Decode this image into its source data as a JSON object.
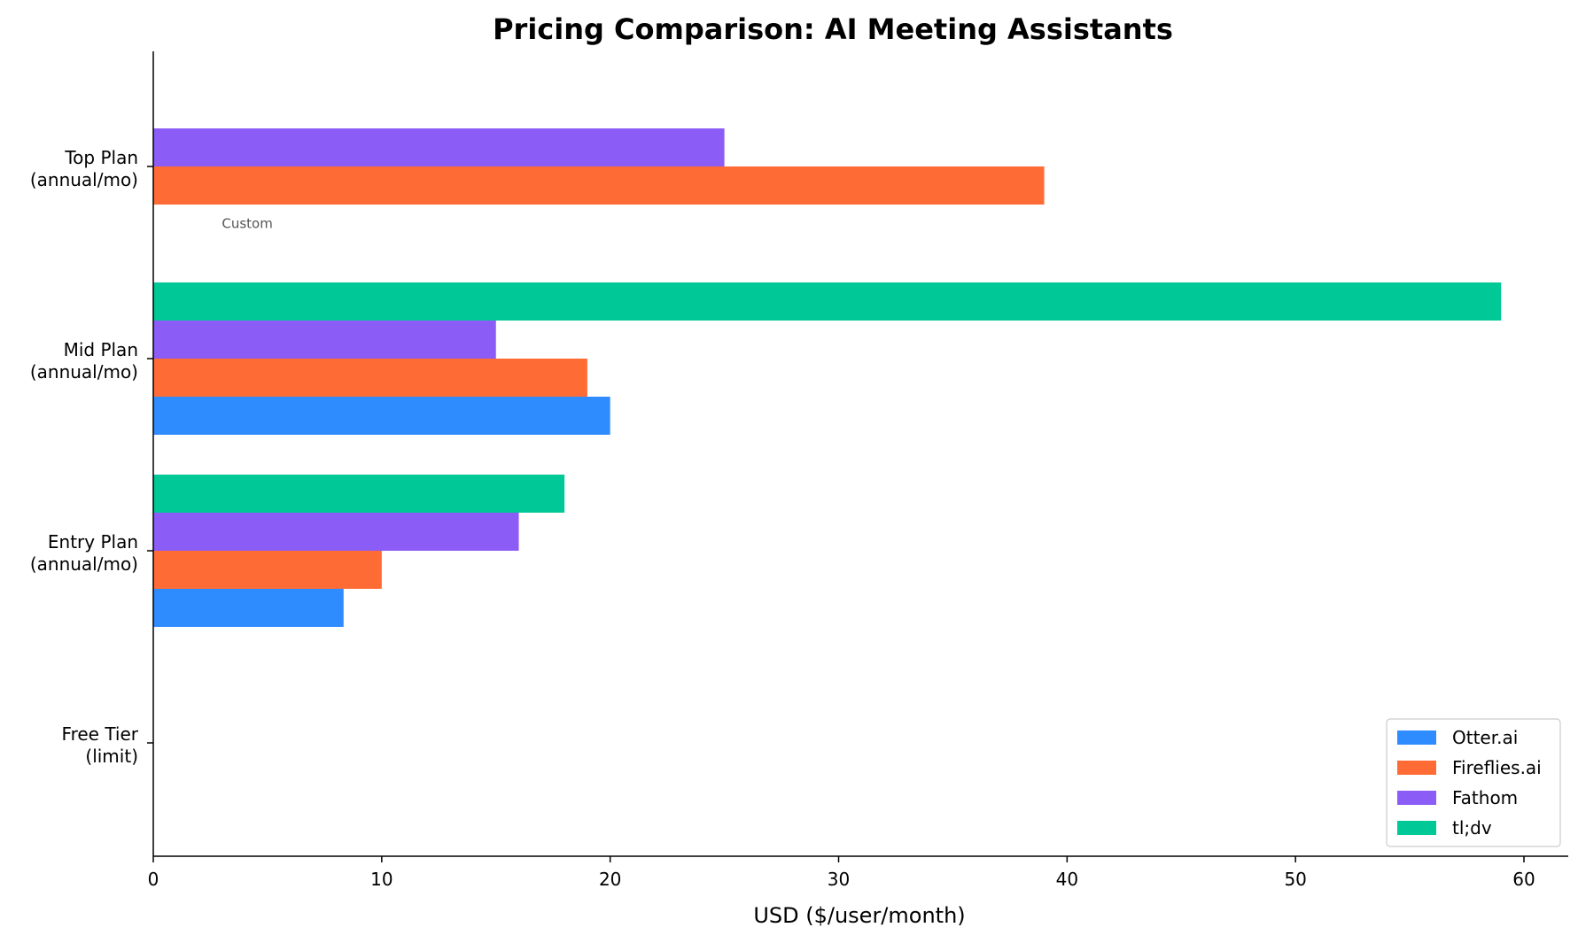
{
  "chart_data": {
    "type": "bar",
    "orientation": "horizontal",
    "title": "Pricing Comparison: AI Meeting Assistants",
    "xlabel": "USD ($/user/month)",
    "ylabel": "",
    "xlim": [
      0,
      62
    ],
    "xticks": [
      0,
      10,
      20,
      30,
      40,
      50,
      60
    ],
    "categories": [
      "Free Tier\n(limit)",
      "Entry Plan\n(annual/mo)",
      "Mid Plan\n(annual/mo)",
      "Top Plan\n(annual/mo)"
    ],
    "series": [
      {
        "name": "Otter.ai",
        "color": "#2e8cff",
        "values": [
          null,
          8.33,
          20,
          null
        ]
      },
      {
        "name": "Fireflies.ai",
        "color": "#ff6b35",
        "values": [
          null,
          10,
          19,
          39
        ]
      },
      {
        "name": "Fathom",
        "color": "#8b5cf6",
        "values": [
          null,
          16,
          15,
          25
        ]
      },
      {
        "name": "tl;dv",
        "color": "#00c896",
        "values": [
          null,
          18,
          59,
          null
        ]
      }
    ],
    "annotations": [
      {
        "text": "Custom",
        "category": "Top Plan\n(annual/mo)",
        "series": "Otter.ai"
      }
    ],
    "legend_position": "lower-right",
    "grid": false
  }
}
